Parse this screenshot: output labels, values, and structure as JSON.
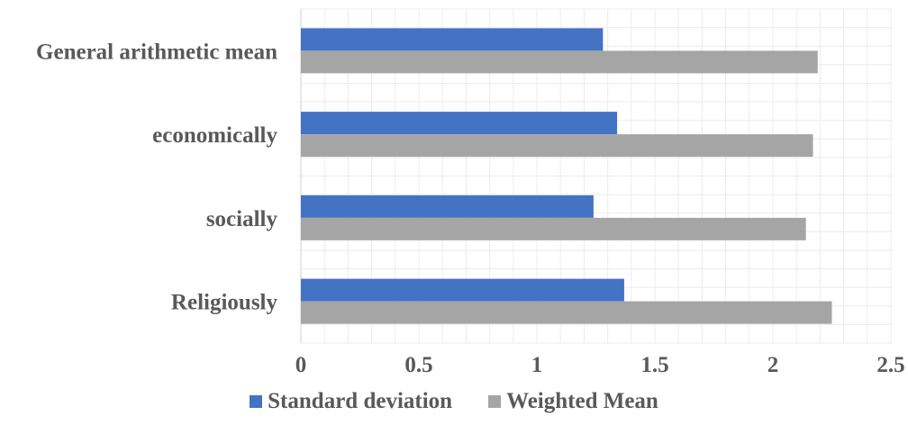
{
  "chart_data": {
    "type": "bar",
    "orientation": "horizontal",
    "categories": [
      "General arithmetic mean",
      "economically",
      "socially",
      "Religiously"
    ],
    "series": [
      {
        "name": "Standard deviation",
        "color": "#4472C4",
        "values": [
          1.28,
          1.34,
          1.24,
          1.37
        ]
      },
      {
        "name": "Weighted Mean",
        "color": "#A5A5A5",
        "values": [
          2.19,
          2.17,
          2.14,
          2.25
        ]
      }
    ],
    "x_ticks": [
      "0",
      "0.5",
      "1",
      "1.5",
      "2",
      "2.5"
    ],
    "xlim": [
      0,
      2.5
    ],
    "grid": true,
    "legend_position": "bottom"
  }
}
